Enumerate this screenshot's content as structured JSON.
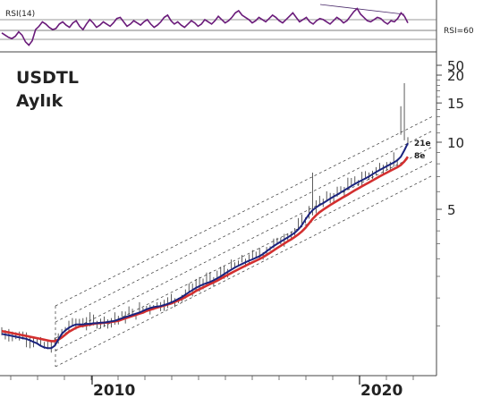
{
  "chart_data": [
    {
      "type": "line",
      "indicator_label": "RSI(14)",
      "reference_label": "RSI=60",
      "series": [
        {
          "values": [
            52,
            50,
            48,
            47,
            49,
            53,
            50,
            44,
            41,
            45,
            55,
            58,
            62,
            60,
            57,
            55,
            56,
            60,
            62,
            59,
            57,
            61,
            63,
            58,
            55,
            60,
            64,
            61,
            57,
            59,
            62,
            60,
            58,
            61,
            65,
            66,
            62,
            58,
            60,
            63,
            61,
            59,
            62,
            64,
            60,
            57,
            59,
            62,
            66,
            68,
            63,
            60,
            62,
            59,
            57,
            60,
            63,
            61,
            58,
            60,
            64,
            62,
            60,
            63,
            67,
            64,
            61,
            63,
            66,
            70,
            72,
            68,
            66,
            64,
            61,
            63,
            66,
            64,
            62,
            65,
            68,
            66,
            63,
            61,
            64,
            67,
            70,
            66,
            62,
            64,
            66,
            62,
            60,
            63,
            65,
            64,
            62,
            60,
            63,
            66,
            64,
            61,
            63,
            67,
            71,
            74,
            69,
            66,
            63,
            62,
            64,
            66,
            65,
            62,
            60,
            63,
            62,
            65,
            70,
            67,
            61
          ]
        }
      ],
      "reference_value": 60
    },
    {
      "type": "line",
      "title": "USDTL",
      "subtitle": "Aylık",
      "y_scale": "log",
      "y_ticks": [
        5,
        10,
        15,
        20,
        50
      ],
      "x_ticks": [
        "2010",
        "2020"
      ],
      "series": [
        {
          "name": "21e",
          "color": "#1a237e",
          "values": [
            1.38,
            1.37,
            1.36,
            1.35,
            1.34,
            1.33,
            1.32,
            1.31,
            1.29,
            1.27,
            1.25,
            1.22,
            1.2,
            1.19,
            1.19,
            1.22,
            1.3,
            1.38,
            1.43,
            1.47,
            1.5,
            1.52,
            1.52,
            1.52,
            1.53,
            1.53,
            1.54,
            1.54,
            1.55,
            1.55,
            1.56,
            1.57,
            1.58,
            1.6,
            1.62,
            1.64,
            1.66,
            1.68,
            1.7,
            1.72,
            1.75,
            1.78,
            1.8,
            1.82,
            1.83,
            1.84,
            1.86,
            1.88,
            1.91,
            1.94,
            1.98,
            2.02,
            2.07,
            2.12,
            2.17,
            2.22,
            2.26,
            2.3,
            2.33,
            2.36,
            2.4,
            2.45,
            2.5,
            2.56,
            2.62,
            2.68,
            2.74,
            2.79,
            2.84,
            2.89,
            2.94,
            2.98,
            3.03,
            3.08,
            3.15,
            3.24,
            3.33,
            3.42,
            3.5,
            3.58,
            3.66,
            3.74,
            3.83,
            3.93,
            4.06,
            4.25,
            4.5,
            4.75,
            4.95,
            5.1,
            5.22,
            5.33,
            5.45,
            5.58,
            5.7,
            5.82,
            5.95,
            6.08,
            6.22,
            6.36,
            6.5,
            6.63,
            6.75,
            6.88,
            7.02,
            7.18,
            7.35,
            7.5,
            7.65,
            7.8,
            7.95,
            8.1,
            8.3,
            8.6,
            9.2,
            9.9
          ]
        },
        {
          "name": "8e",
          "color": "#d32f2f",
          "values": [
            1.42,
            1.41,
            1.4,
            1.39,
            1.38,
            1.37,
            1.36,
            1.35,
            1.34,
            1.33,
            1.32,
            1.31,
            1.3,
            1.29,
            1.28,
            1.28,
            1.3,
            1.33,
            1.37,
            1.41,
            1.44,
            1.47,
            1.49,
            1.5,
            1.51,
            1.52,
            1.53,
            1.54,
            1.54,
            1.55,
            1.55,
            1.56,
            1.57,
            1.58,
            1.6,
            1.62,
            1.64,
            1.66,
            1.68,
            1.7,
            1.72,
            1.75,
            1.77,
            1.79,
            1.81,
            1.83,
            1.85,
            1.87,
            1.89,
            1.92,
            1.95,
            1.98,
            2.02,
            2.06,
            2.1,
            2.15,
            2.19,
            2.23,
            2.27,
            2.31,
            2.35,
            2.39,
            2.44,
            2.49,
            2.54,
            2.59,
            2.64,
            2.69,
            2.74,
            2.79,
            2.84,
            2.89,
            2.94,
            2.99,
            3.05,
            3.12,
            3.19,
            3.27,
            3.35,
            3.43,
            3.51,
            3.59,
            3.67,
            3.76,
            3.86,
            3.98,
            4.13,
            4.32,
            4.52,
            4.7,
            4.85,
            4.98,
            5.1,
            5.22,
            5.34,
            5.46,
            5.58,
            5.7,
            5.82,
            5.95,
            6.08,
            6.21,
            6.34,
            6.47,
            6.6,
            6.74,
            6.88,
            7.02,
            7.16,
            7.3,
            7.44,
            7.58,
            7.72,
            7.9,
            8.2,
            8.6
          ]
        }
      ]
    }
  ]
}
